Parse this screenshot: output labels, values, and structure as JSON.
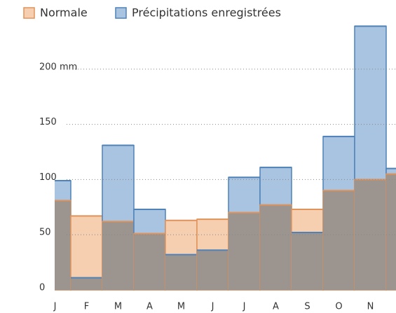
{
  "chart_data": {
    "type": "step-area",
    "categories": [
      "J",
      "F",
      "M",
      "A",
      "M",
      "J",
      "J",
      "A",
      "S",
      "O",
      "N",
      null
    ],
    "series": [
      {
        "name": "Normale",
        "color": "#f5cfb0",
        "line_color": "#e0935a",
        "values": [
          81,
          67,
          62,
          51,
          63,
          64,
          70,
          77,
          73,
          90,
          100,
          105
        ]
      },
      {
        "name": "Précipitations enregistrées",
        "color": "#a9c4e0",
        "line_color": "#4f82b8",
        "values": [
          99,
          11,
          131,
          73,
          32,
          36,
          102,
          111,
          52,
          139,
          239,
          110
        ]
      }
    ],
    "overlap_color": "#9c948f",
    "ylim": [
      0,
      250
    ],
    "yticks": [
      0,
      50,
      100,
      150,
      {
        "value": 200,
        "label": "200 mm"
      }
    ],
    "grid": true
  }
}
